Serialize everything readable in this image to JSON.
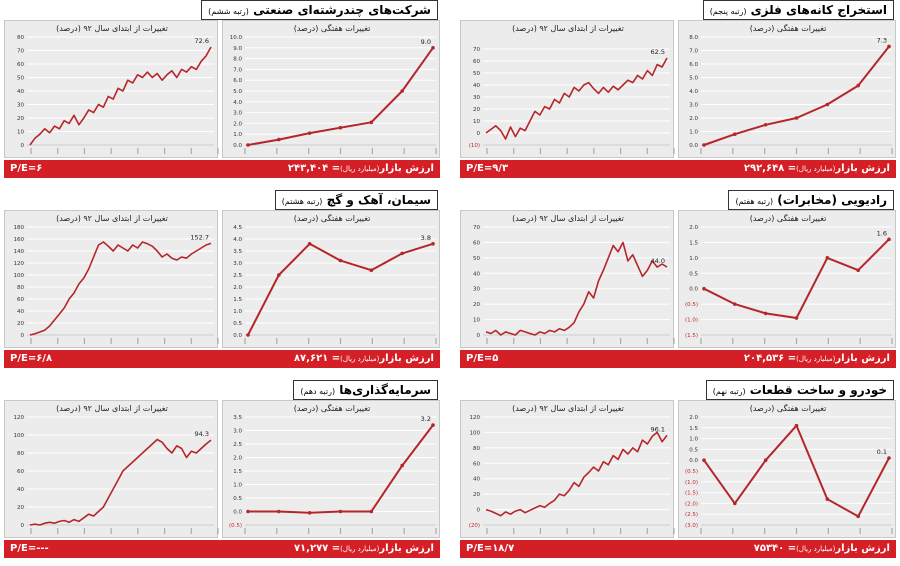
{
  "colors": {
    "line": "#b5262a",
    "footer_bg": "#d41f26",
    "grid": "#ffffff",
    "bg": "#ececec"
  },
  "mv_label": "ارزش بازار",
  "mv_unit": "(میلیارد ریال)",
  "pe_label": "P/E=",
  "panels": [
    {
      "title": "استخراج کانه‌های فلزی",
      "rank": "(رتبه پنجم)",
      "market_value": "= ۲۹۲,۶۴۸",
      "pe": "۹/۳",
      "chart_data": [
        {
          "type": "line",
          "title": "تغییرات از ابتدای سال ۹۲ (درصد)",
          "side": "left",
          "ylim": [
            -10,
            80
          ],
          "yticks": [
            -10,
            0,
            10,
            20,
            30,
            40,
            50,
            60,
            70
          ],
          "ytick_labels": [
            "(10)",
            "0",
            "10",
            "20",
            "30",
            "40",
            "50",
            "60",
            "70"
          ],
          "end_label": "62.5",
          "line_width": 1.6,
          "values": [
            0,
            3,
            6,
            2,
            -5,
            5,
            -3,
            4,
            2,
            10,
            18,
            15,
            22,
            20,
            28,
            25,
            33,
            30,
            38,
            35,
            40,
            42,
            37,
            33,
            38,
            34,
            39,
            36,
            40,
            44,
            42,
            48,
            45,
            52,
            48,
            57,
            55,
            62.5
          ]
        },
        {
          "type": "line",
          "title": "تغییرات هفتگی (درصد)",
          "side": "right",
          "ylim": [
            0,
            8
          ],
          "yticks": [
            0,
            1,
            2,
            3,
            4,
            5,
            6,
            7,
            8
          ],
          "ytick_labels": [
            "0.0",
            "1.0",
            "2.0",
            "3.0",
            "4.0",
            "5.0",
            "6.0",
            "7.0",
            "8.0"
          ],
          "end_label": "7.3",
          "markers": true,
          "line_width": 2,
          "values": [
            0,
            0.8,
            1.5,
            2.0,
            3.0,
            4.4,
            7.3
          ]
        }
      ]
    },
    {
      "title": "شرکت‌های چندرشته‌ای صنعتی",
      "rank": "(رتبه ششم)",
      "market_value": "= ۲۴۳,۴۰۴",
      "pe": "۶",
      "chart_data": [
        {
          "type": "line",
          "title": "تغییرات از ابتدای سال ۹۲ (درصد)",
          "side": "left",
          "ylim": [
            0,
            80
          ],
          "yticks": [
            0,
            10,
            20,
            30,
            40,
            50,
            60,
            70,
            80
          ],
          "ytick_labels": [
            "0",
            "10",
            "20",
            "30",
            "40",
            "50",
            "60",
            "70",
            "80"
          ],
          "end_label": "72.6",
          "line_width": 1.6,
          "values": [
            0,
            5,
            8,
            12,
            9,
            14,
            12,
            18,
            16,
            22,
            15,
            20,
            26,
            24,
            30,
            28,
            36,
            34,
            42,
            40,
            48,
            46,
            52,
            50,
            54,
            50,
            53,
            48,
            52,
            55,
            50,
            56,
            54,
            58,
            56,
            62,
            66,
            72.6
          ]
        },
        {
          "type": "line",
          "title": "تغییرات هفتگی (درصد)",
          "side": "right",
          "ylim": [
            0,
            10
          ],
          "yticks": [
            0,
            1,
            2,
            3,
            4,
            5,
            6,
            7,
            8,
            9,
            10
          ],
          "ytick_labels": [
            "0.0",
            "1.0",
            "2.0",
            "3.0",
            "4.0",
            "5.0",
            "6.0",
            "7.0",
            "8.0",
            "9.0",
            "10.0"
          ],
          "end_label": "9.0",
          "markers": true,
          "line_width": 2,
          "values": [
            0,
            0.5,
            1.1,
            1.6,
            2.1,
            5.0,
            9.0
          ]
        }
      ]
    },
    {
      "title": "رادیویی (مخابرات)",
      "rank": "(رتبه هفتم)",
      "market_value": "= ۲۰۴,۵۳۶",
      "pe": "۵",
      "chart_data": [
        {
          "type": "line",
          "title": "تغییرات از ابتدای سال ۹۲ (درصد)",
          "side": "left",
          "ylim": [
            0,
            70
          ],
          "yticks": [
            0,
            10,
            20,
            30,
            40,
            50,
            60,
            70
          ],
          "ytick_labels": [
            "0",
            "10",
            "20",
            "30",
            "40",
            "50",
            "60",
            "70"
          ],
          "end_label": "44.0",
          "line_width": 1.6,
          "values": [
            2,
            1,
            3,
            0,
            2,
            1,
            0,
            3,
            2,
            1,
            0,
            2,
            1,
            3,
            2,
            4,
            3,
            5,
            8,
            15,
            20,
            28,
            24,
            35,
            42,
            50,
            58,
            54,
            60,
            48,
            52,
            45,
            38,
            42,
            48,
            44,
            46,
            44
          ]
        },
        {
          "type": "line",
          "title": "تغییرات هفتگی (درصد)",
          "side": "right",
          "ylim": [
            -1.5,
            2.0
          ],
          "yticks": [
            -1.5,
            -1,
            -0.5,
            0,
            0.5,
            1,
            1.5,
            2
          ],
          "ytick_labels": [
            "(1.5)",
            "(1.0)",
            "(0.5)",
            "0.0",
            "0.5",
            "1.0",
            "1.5",
            "2.0"
          ],
          "end_label": "1.6",
          "markers": true,
          "line_width": 2,
          "values": [
            0,
            -0.5,
            -0.8,
            -0.95,
            1.0,
            0.6,
            1.6
          ]
        }
      ]
    },
    {
      "title": "سیمان، آهک و گچ",
      "rank": "(رتبه هشتم)",
      "market_value": "= ۸۷,۶۲۱",
      "pe": "۶/۸",
      "chart_data": [
        {
          "type": "line",
          "title": "تغییرات از ابتدای سال ۹۲ (درصد)",
          "side": "left",
          "ylim": [
            0,
            180
          ],
          "yticks": [
            0,
            20,
            40,
            60,
            80,
            100,
            120,
            140,
            160,
            180
          ],
          "ytick_labels": [
            "0",
            "20",
            "40",
            "60",
            "80",
            "100",
            "120",
            "140",
            "160",
            "180"
          ],
          "end_label": "152.7",
          "line_width": 1.6,
          "values": [
            0,
            2,
            5,
            8,
            15,
            25,
            35,
            45,
            60,
            70,
            85,
            95,
            110,
            130,
            150,
            155,
            148,
            140,
            150,
            145,
            140,
            150,
            145,
            155,
            152,
            148,
            140,
            130,
            135,
            128,
            125,
            130,
            128,
            135,
            140,
            145,
            150,
            152.7
          ]
        },
        {
          "type": "line",
          "title": "تغییرات هفتگی (درصد)",
          "side": "right",
          "ylim": [
            0,
            4.5
          ],
          "yticks": [
            0,
            0.5,
            1,
            1.5,
            2,
            2.5,
            3,
            3.5,
            4,
            4.5
          ],
          "ytick_labels": [
            "0.0",
            "0.5",
            "1.0",
            "1.5",
            "2.0",
            "2.5",
            "3.0",
            "3.5",
            "4.0",
            "4.5"
          ],
          "end_label": "3.8",
          "markers": true,
          "line_width": 2,
          "values": [
            0,
            2.5,
            3.8,
            3.1,
            2.7,
            3.4,
            3.8
          ]
        }
      ]
    },
    {
      "title": "خودرو و ساخت قطعات",
      "rank": "(رتبه نهم)",
      "market_value": "= ۷۵۳۴۰",
      "pe": "۱۸/۷",
      "chart_data": [
        {
          "type": "line",
          "title": "تغییرات از ابتدای سال ۹۲ (درصد)",
          "side": "left",
          "ylim": [
            -20,
            120
          ],
          "yticks": [
            -20,
            0,
            20,
            40,
            60,
            80,
            100,
            120
          ],
          "ytick_labels": [
            "(20)",
            "0",
            "20",
            "40",
            "60",
            "80",
            "100",
            "120"
          ],
          "end_label": "96.1",
          "line_width": 1.6,
          "values": [
            0,
            -2,
            -5,
            -8,
            -3,
            -6,
            -2,
            0,
            -4,
            -1,
            2,
            5,
            3,
            8,
            12,
            20,
            18,
            25,
            35,
            30,
            42,
            48,
            55,
            50,
            62,
            58,
            70,
            65,
            78,
            72,
            80,
            75,
            90,
            85,
            95,
            100,
            88,
            96.1
          ]
        },
        {
          "type": "line",
          "title": "تغییرات هفتگی (درصد)",
          "side": "right",
          "ylim": [
            -3,
            2
          ],
          "yticks": [
            -3,
            -2.5,
            -2,
            -1.5,
            -1,
            -0.5,
            0,
            0.5,
            1,
            1.5,
            2
          ],
          "ytick_labels": [
            "(3.0)",
            "(2.5)",
            "(2.0)",
            "(1.5)",
            "(1.0)",
            "(0.5)",
            "0.0",
            "0.5",
            "1.0",
            "1.5",
            "2.0"
          ],
          "end_label": "0.1",
          "markers": true,
          "line_width": 2,
          "values": [
            0,
            -2,
            0,
            1.6,
            -1.8,
            -2.6,
            0.1
          ]
        }
      ]
    },
    {
      "title": "سرمایه‌گذاری‌ها",
      "rank": "(رتبه دهم)",
      "market_value": "= ۷۱,۲۷۷",
      "pe": "---",
      "chart_data": [
        {
          "type": "line",
          "title": "تغییرات از ابتدای سال ۹۲ (درصد)",
          "side": "left",
          "ylim": [
            0,
            120
          ],
          "yticks": [
            0,
            20,
            40,
            60,
            80,
            100,
            120
          ],
          "ytick_labels": [
            "0",
            "20",
            "40",
            "60",
            "80",
            "100",
            "120"
          ],
          "end_label": "94.3",
          "line_width": 1.6,
          "values": [
            0,
            1,
            0,
            2,
            3,
            2,
            4,
            5,
            3,
            6,
            4,
            8,
            12,
            10,
            15,
            20,
            30,
            40,
            50,
            60,
            65,
            70,
            75,
            80,
            85,
            90,
            95,
            92,
            85,
            80,
            88,
            85,
            75,
            82,
            80,
            85,
            90,
            94.3
          ]
        },
        {
          "type": "line",
          "title": "تغییرات هفتگی (درصد)",
          "side": "right",
          "ylim": [
            -0.5,
            3.5
          ],
          "yticks": [
            -0.5,
            0,
            0.5,
            1,
            1.5,
            2,
            2.5,
            3,
            3.5
          ],
          "ytick_labels": [
            "(0.5)",
            "0.0",
            "0.5",
            "1.0",
            "1.5",
            "2.0",
            "2.5",
            "3.0",
            "3.5"
          ],
          "end_label": "3.2",
          "markers": true,
          "line_width": 2,
          "values": [
            0,
            0,
            -0.05,
            0,
            0,
            1.7,
            3.2
          ]
        }
      ]
    }
  ]
}
